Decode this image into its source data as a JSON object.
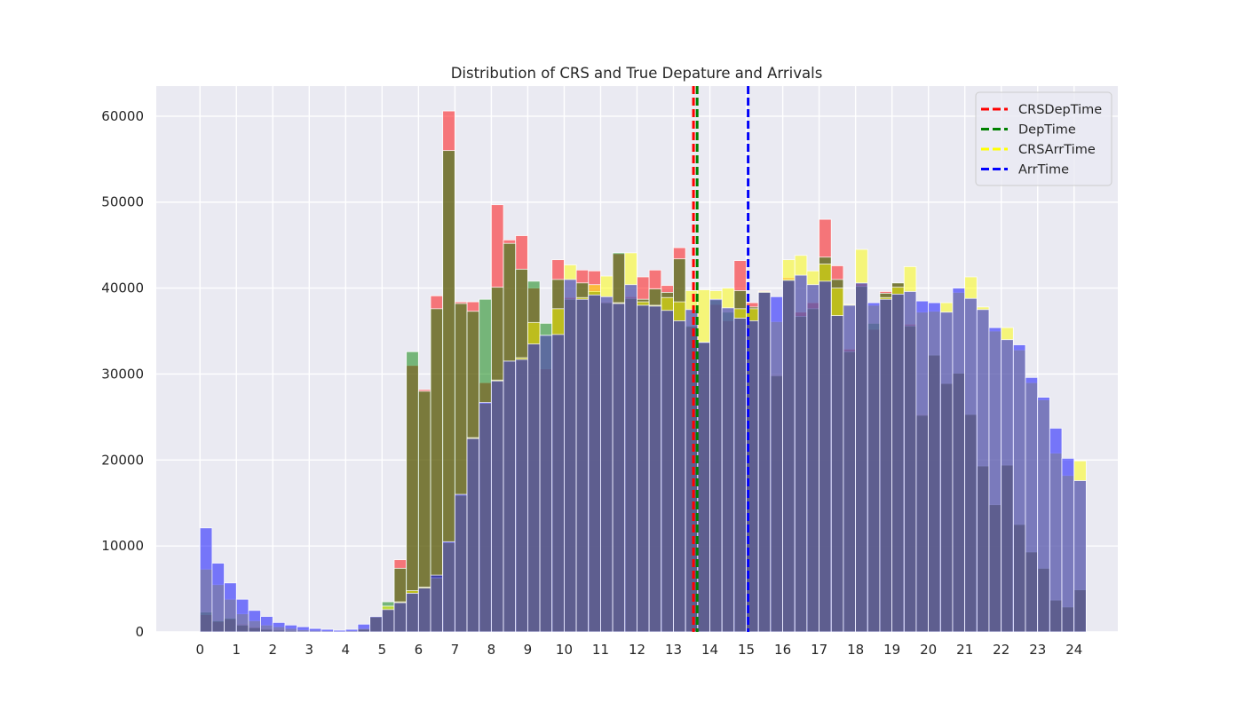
{
  "chart_data": {
    "type": "bar",
    "title": "Distribution of CRS and True Depature and Arrivals",
    "xlabel": "",
    "ylabel": "",
    "xlim": [
      -1.2,
      25.2
    ],
    "ylim": [
      0,
      63500
    ],
    "bin_width": 0.3333,
    "x_ticks": [
      0,
      1,
      2,
      3,
      4,
      5,
      6,
      7,
      8,
      9,
      10,
      11,
      12,
      13,
      14,
      15,
      16,
      17,
      18,
      19,
      20,
      21,
      22,
      23,
      24
    ],
    "y_ticks": [
      0,
      10000,
      20000,
      30000,
      40000,
      50000,
      60000
    ],
    "grid": true,
    "legend_position": "top-right",
    "background": "#eaeaf2",
    "series": [
      {
        "name": "CRSDepTime",
        "color": "#ff0000",
        "opacity": 0.5,
        "values": [
          2000,
          1200,
          1500,
          900,
          600,
          400,
          300,
          200,
          120,
          80,
          50,
          40,
          60,
          300,
          1700,
          2700,
          8400,
          31000,
          28200,
          39100,
          60600,
          38400,
          38400,
          29000,
          49700,
          45600,
          46100,
          40000,
          30600,
          43300,
          38900,
          42100,
          42000,
          38400,
          44000,
          39000,
          41300,
          42100,
          40300,
          44700,
          35500,
          33600,
          38100,
          36200,
          43200,
          38300,
          39700,
          29900,
          41200,
          37200,
          38300,
          48000,
          42600,
          32900,
          40500,
          35200,
          39600,
          40600,
          35800,
          25300,
          32200,
          28900,
          30100,
          25300,
          19300,
          14800,
          19400,
          12500,
          9300,
          7400,
          3700,
          2900,
          4900
        ]
      },
      {
        "name": "DepTime",
        "color": "#008000",
        "opacity": 0.5,
        "values": [
          2300,
          1300,
          1600,
          800,
          500,
          300,
          200,
          150,
          100,
          80,
          50,
          40,
          60,
          300,
          1700,
          3500,
          7400,
          32600,
          28000,
          37600,
          56000,
          38200,
          37300,
          38700,
          40100,
          45200,
          42200,
          40800,
          35900,
          41000,
          38700,
          40600,
          39600,
          38300,
          44100,
          38800,
          38700,
          39900,
          39500,
          43400,
          35600,
          33600,
          38600,
          37200,
          39700,
          37800,
          39600,
          29800,
          41000,
          36700,
          37600,
          43600,
          41000,
          32600,
          40200,
          35900,
          39400,
          40600,
          35600,
          25200,
          32200,
          28900,
          30100,
          25300,
          19300,
          14800,
          19400,
          12500,
          9300,
          7400,
          3700,
          2900,
          4900
        ]
      },
      {
        "name": "CRSArrTime",
        "color": "#ffff00",
        "opacity": 0.5,
        "values": [
          7300,
          5500,
          3800,
          2100,
          1300,
          800,
          600,
          400,
          250,
          180,
          130,
          100,
          150,
          400,
          1800,
          3000,
          3500,
          4800,
          5200,
          6300,
          10400,
          15900,
          22600,
          26600,
          29300,
          31500,
          31900,
          36000,
          34500,
          37600,
          42700,
          38900,
          40400,
          41400,
          38300,
          44100,
          38400,
          38000,
          38900,
          38400,
          39700,
          39800,
          39700,
          40000,
          37600,
          37600,
          39600,
          36100,
          43300,
          43800,
          42000,
          42800,
          40000,
          38100,
          44500,
          38000,
          38900,
          40100,
          42500,
          37200,
          37300,
          38300,
          39500,
          41300,
          37800,
          35000,
          35400,
          32800,
          29000,
          27000,
          20800,
          18200,
          19900
        ]
      },
      {
        "name": "ArrTime",
        "color": "#0000ff",
        "opacity": 0.5,
        "values": [
          12100,
          8000,
          5700,
          3800,
          2500,
          1800,
          1100,
          800,
          600,
          400,
          300,
          200,
          300,
          900,
          1800,
          2600,
          3400,
          4500,
          5100,
          6600,
          10500,
          16000,
          22500,
          26700,
          29200,
          31500,
          31700,
          33500,
          34500,
          34600,
          41000,
          38700,
          39200,
          39000,
          38200,
          40400,
          38000,
          37900,
          37400,
          36200,
          37500,
          33700,
          38700,
          37700,
          36500,
          36200,
          39500,
          39000,
          40900,
          41500,
          40400,
          40800,
          36800,
          38000,
          40600,
          38300,
          38700,
          39300,
          39600,
          38500,
          38300,
          37200,
          40000,
          38800,
          37500,
          35400,
          34000,
          33400,
          29600,
          27300,
          23700,
          20200,
          17600
        ]
      }
    ],
    "vlines": [
      {
        "name": "CRSDepTime",
        "x": 13.55,
        "color": "#ff0000"
      },
      {
        "name": "DepTime",
        "x": 13.65,
        "color": "#008000"
      },
      {
        "name": "CRSArrTime",
        "x": 15.05,
        "color": "#ffff00"
      },
      {
        "name": "ArrTime",
        "x": 15.05,
        "color": "#0000ff"
      }
    ]
  }
}
